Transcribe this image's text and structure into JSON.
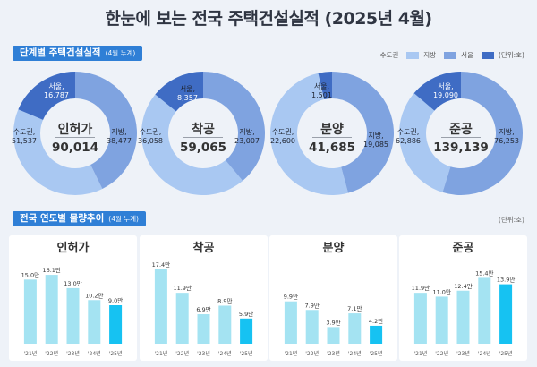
{
  "title": "한눈에 보는 전국 주택건설실적 (2025년 4월)",
  "section1": {
    "label": "단계별 주택건설실적",
    "sub": "(4월 누계)"
  },
  "legend": {
    "items": [
      {
        "label": "수도권",
        "color": "#a9c8f2"
      },
      {
        "label": "지방",
        "color": "#7fa3e0"
      },
      {
        "label": "서울",
        "color": "#3f6cc4"
      }
    ],
    "unit": "(단위:호)"
  },
  "donuts": [
    {
      "name": "인허가",
      "total": "90,014",
      "regional": {
        "label": "지방,",
        "value": "38,477",
        "num": 38477
      },
      "capital": {
        "label": "수도권,",
        "value": "51,537",
        "num": 51537
      },
      "seoul": {
        "label": "서울,",
        "value": "16,787",
        "num": 16787
      }
    },
    {
      "name": "착공",
      "total": "59,065",
      "regional": {
        "label": "지방,",
        "value": "23,007",
        "num": 23007
      },
      "capital": {
        "label": "수도권,",
        "value": "36,058",
        "num": 36058
      },
      "seoul": {
        "label": "서울,",
        "value": "8,357",
        "num": 8357
      }
    },
    {
      "name": "분양",
      "total": "41,685",
      "regional": {
        "label": "지방,",
        "value": "19,085",
        "num": 19085
      },
      "capital": {
        "label": "수도권,",
        "value": "22,600",
        "num": 22600
      },
      "seoul": {
        "label": "서울,",
        "value": "1,501",
        "num": 1501
      }
    },
    {
      "name": "준공",
      "total": "139,139",
      "regional": {
        "label": "지방,",
        "value": "76,253",
        "num": 76253
      },
      "capital": {
        "label": "수도권,",
        "value": "62,886",
        "num": 62886
      },
      "seoul": {
        "label": "서울,",
        "value": "19,090",
        "num": 19090
      }
    }
  ],
  "section2": {
    "label": "전국 연도별 물량추이",
    "sub": "(4월 누계)",
    "unit": "(단위:호)"
  },
  "colors": {
    "capital": "#a9c8f2",
    "regional": "#7fa3e0",
    "seoul": "#3f6cc4",
    "bar": "#a4e3f2",
    "bar_current": "#16c2f2"
  },
  "chart_data": [
    {
      "type": "bar",
      "title": "인허가",
      "categories": [
        "'21년",
        "'22년",
        "'23년",
        "'24년",
        "'25년"
      ],
      "values": [
        15.0,
        16.1,
        13.0,
        10.2,
        9.0
      ],
      "labels": [
        "15.0만",
        "16.1만",
        "13.0만",
        "10.2만",
        "9.0만"
      ]
    },
    {
      "type": "bar",
      "title": "착공",
      "categories": [
        "'21년",
        "'22년",
        "'23년",
        "'24년",
        "'25년"
      ],
      "values": [
        17.4,
        11.9,
        6.9,
        8.9,
        5.9
      ],
      "labels": [
        "17.4만",
        "11.9만",
        "6.9만",
        "8.9만",
        "5.9만"
      ]
    },
    {
      "type": "bar",
      "title": "분양",
      "categories": [
        "'21년",
        "'22년",
        "'23년",
        "'24년",
        "'25년"
      ],
      "values": [
        9.9,
        7.9,
        3.9,
        7.1,
        4.2
      ],
      "labels": [
        "9.9만",
        "7.9만",
        "3.9만",
        "7.1만",
        "4.2만"
      ]
    },
    {
      "type": "bar",
      "title": "준공",
      "categories": [
        "'21년",
        "'22년",
        "'23년",
        "'24년",
        "'25년"
      ],
      "values": [
        11.9,
        11.0,
        12.4,
        15.4,
        13.9
      ],
      "labels": [
        "11.9만",
        "11.0만",
        "12.4만",
        "15.4만",
        "13.9만"
      ]
    }
  ]
}
